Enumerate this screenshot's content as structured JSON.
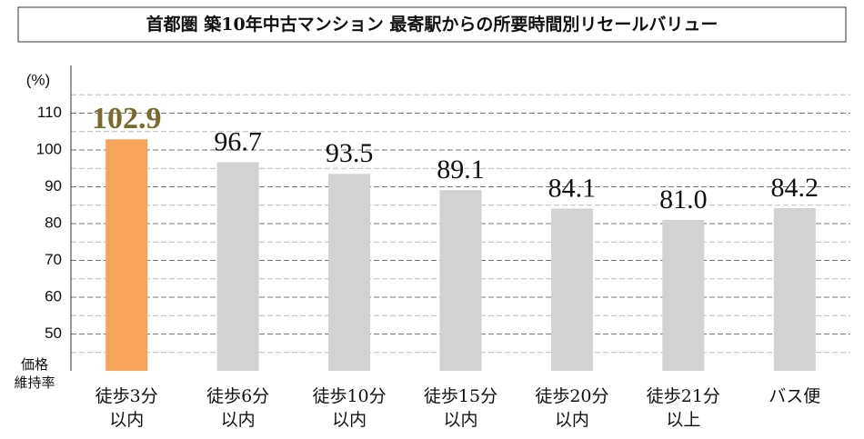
{
  "chart_data": {
    "type": "bar",
    "title": "首都圏 築10年中古マンション 最寄駅からの所要時間別リセールバリュー",
    "y_unit": "(%)",
    "y_label": [
      "価格",
      "維持率"
    ],
    "categories": [
      [
        "徒歩3分",
        "以内"
      ],
      [
        "徒歩6分",
        "以内"
      ],
      [
        "徒歩10分",
        "以内"
      ],
      [
        "徒歩15分",
        "以内"
      ],
      [
        "徒歩20分",
        "以内"
      ],
      [
        "徒歩21分",
        "以上"
      ],
      [
        "バス便"
      ]
    ],
    "values": [
      102.9,
      96.7,
      93.5,
      89.1,
      84.1,
      81.0,
      84.2
    ],
    "value_labels": [
      "102.9",
      "96.7",
      "93.5",
      "89.1",
      "84.1",
      "81.0",
      "84.2"
    ],
    "colors": [
      "#f6a45a",
      "#d2d2d2",
      "#d2d2d2",
      "#d2d2d2",
      "#d2d2d2",
      "#d2d2d2",
      "#d2d2d2"
    ],
    "value_label_colors": [
      "#7a6a2c",
      "#111111",
      "#111111",
      "#111111",
      "#111111",
      "#111111",
      "#111111"
    ],
    "ylim": [
      40,
      120
    ],
    "yticks": [
      50,
      60,
      70,
      80,
      90,
      100,
      110
    ],
    "minor_yticks": [
      45,
      55,
      65,
      75,
      85,
      95,
      105,
      115
    ],
    "grid": true
  }
}
